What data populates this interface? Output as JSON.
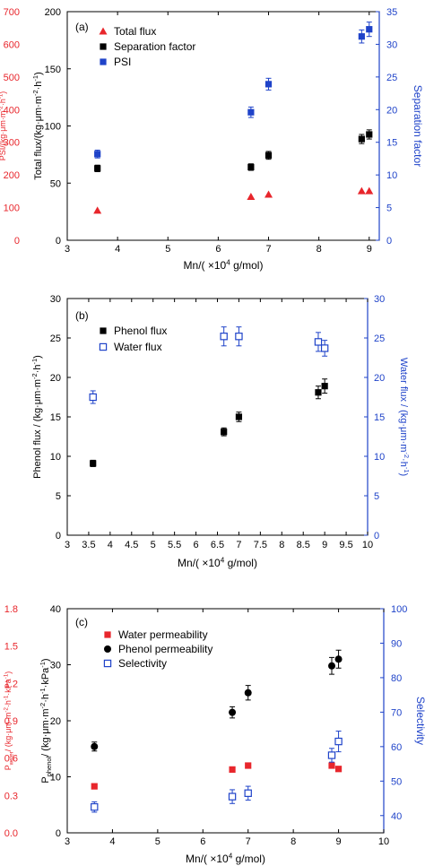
{
  "chart_data": [
    {
      "type": "scatter",
      "panel_label": "(a)",
      "xlabel_parts": [
        "Mn/( ×10",
        "4",
        " g/mol)"
      ],
      "x_ticks": [
        "3",
        "4",
        "5",
        "6",
        "7",
        "8",
        "9"
      ],
      "xlim": [
        3,
        9.2
      ],
      "left_outer_axis": {
        "label_parts": [
          "PSI/(kg·μm·m",
          "-2",
          "·h",
          "-1",
          ")"
        ],
        "ylim": [
          0,
          700
        ],
        "ticks": [
          "0",
          "100",
          "200",
          "300",
          "400",
          "500",
          "600",
          "700"
        ],
        "color": "#e8262c"
      },
      "left_inner_axis": {
        "label_parts": [
          "Total flux/(kg·μm·m",
          "-2",
          "·h",
          "-1",
          ")"
        ],
        "ylim": [
          0,
          200
        ],
        "ticks": [
          "0",
          "50",
          "100",
          "150",
          "200"
        ],
        "color": "#000000"
      },
      "right_axis": {
        "label": "Separation factor",
        "ylim": [
          0,
          35
        ],
        "ticks": [
          "0",
          "5",
          "10",
          "15",
          "20",
          "25",
          "30",
          "35"
        ],
        "color": "#1f43c9"
      },
      "series": [
        {
          "name": "Total flux",
          "marker": "triangle",
          "color": "#e8262c",
          "axis": "left_inner",
          "x": [
            3.6,
            6.65,
            7.0,
            8.85,
            9.0
          ],
          "y": [
            26,
            38,
            40,
            43,
            43
          ],
          "err": [
            0,
            0,
            0,
            0,
            0
          ]
        },
        {
          "name": "Separation factor",
          "marker": "square",
          "color": "#000000",
          "axis": "right",
          "x": [
            3.6,
            6.65,
            7.0,
            8.85,
            9.0
          ],
          "y": [
            11.0,
            11.2,
            13.0,
            15.5,
            16.2
          ],
          "err": [
            0.5,
            0.5,
            0.6,
            0.7,
            0.7
          ]
        },
        {
          "name": "PSI",
          "marker": "square",
          "color": "#1f43c9",
          "axis": "right",
          "x": [
            3.6,
            6.65,
            7.0,
            8.85,
            9.0
          ],
          "y": [
            13.2,
            19.6,
            23.9,
            31.2,
            32.3
          ],
          "err": [
            0.6,
            0.8,
            0.9,
            1.0,
            1.1
          ]
        }
      ],
      "legend_position": "top-left"
    },
    {
      "type": "scatter",
      "panel_label": "(b)",
      "xlabel_parts": [
        "Mn/( ×10",
        "4",
        " g/mol)"
      ],
      "x_ticks": [
        "3",
        "3.5",
        "4",
        "4.5",
        "5",
        "5.5",
        "6",
        "6.5",
        "7",
        "7.5",
        "8",
        "8.5",
        "9",
        "9.5",
        "10"
      ],
      "xlim": [
        3,
        10
      ],
      "left_axis": {
        "label_parts": [
          "Phenol flux / (kg·μm·m",
          "-2",
          "·h",
          "-1",
          ")"
        ],
        "ylim": [
          0,
          30
        ],
        "ticks": [
          "0",
          "5",
          "10",
          "15",
          "20",
          "25",
          "30"
        ],
        "color": "#000000"
      },
      "right_axis": {
        "label_parts": [
          "Water flux / (kg·μm·m",
          "-2",
          "·h",
          "-1",
          ")"
        ],
        "ylim": [
          0,
          30
        ],
        "ticks": [
          "0",
          "5",
          "10",
          "15",
          "20",
          "25",
          "30"
        ],
        "color": "#1f43c9"
      },
      "series": [
        {
          "name": "Phenol flux",
          "marker": "square",
          "color": "#000000",
          "axis": "left",
          "x": [
            3.6,
            6.65,
            7.0,
            8.85,
            9.0
          ],
          "y": [
            9.1,
            13.1,
            15.0,
            18.1,
            18.9
          ],
          "err": [
            0.4,
            0.5,
            0.6,
            0.8,
            0.9
          ]
        },
        {
          "name": "Water flux",
          "marker": "open-square",
          "color": "#1f43c9",
          "axis": "right",
          "x": [
            3.6,
            6.65,
            7.0,
            8.85,
            9.0
          ],
          "y": [
            17.5,
            25.2,
            25.2,
            24.5,
            23.7
          ],
          "err": [
            0.8,
            1.2,
            1.2,
            1.2,
            1.0
          ]
        }
      ],
      "legend_position": "top-left"
    },
    {
      "type": "scatter",
      "panel_label": "(c)",
      "xlabel_parts": [
        "Mn/( ×10",
        "4",
        " g/mol)"
      ],
      "x_ticks": [
        "3",
        "4",
        "5",
        "6",
        "7",
        "8",
        "9",
        "10"
      ],
      "xlim": [
        3,
        10
      ],
      "left_outer_axis": {
        "label_parts": [
          "P",
          "water",
          "/ (kg·μm·m",
          "-2",
          "·h",
          "-1",
          "·kPa",
          "-1",
          ")"
        ],
        "ylim": [
          0,
          1.8
        ],
        "ticks": [
          "0.0",
          "0.3",
          "0.6",
          "0.9",
          "1.2",
          "1.5",
          "1.8"
        ],
        "color": "#e8262c"
      },
      "left_inner_axis": {
        "label_parts": [
          "P",
          "phenol",
          "/ (kg·μm·m",
          "-2",
          "·h",
          "-1",
          "·kPa",
          "-1",
          ")"
        ],
        "ylim": [
          0,
          40
        ],
        "ticks": [
          "0",
          "10",
          "20",
          "30",
          "40"
        ],
        "color": "#000000"
      },
      "right_axis": {
        "label": "Selectivity",
        "ylim": [
          35,
          100
        ],
        "ticks": [
          "40",
          "50",
          "60",
          "70",
          "80",
          "90",
          "100"
        ],
        "color": "#1f43c9"
      },
      "series": [
        {
          "name": "Water permeability",
          "marker": "square",
          "color": "#e8262c",
          "axis": "left_inner",
          "x": [
            3.6,
            6.65,
            7.0,
            8.85,
            9.0
          ],
          "y": [
            8.3,
            11.3,
            12.0,
            12.0,
            11.4
          ],
          "err": [
            0.3,
            0.4,
            0.4,
            0.4,
            0.4
          ]
        },
        {
          "name": "Phenol permeability",
          "marker": "circle",
          "color": "#000000",
          "axis": "left_inner",
          "x": [
            3.6,
            6.65,
            7.0,
            8.85,
            9.0
          ],
          "y": [
            15.4,
            21.5,
            25.0,
            29.8,
            31.0
          ],
          "err": [
            0.8,
            1.0,
            1.3,
            1.5,
            1.6
          ]
        },
        {
          "name": "Selectivity",
          "marker": "open-square",
          "color": "#1f43c9",
          "axis": "right",
          "x": [
            3.6,
            6.65,
            7.0,
            8.85,
            9.0
          ],
          "y": [
            42.5,
            45.5,
            46.5,
            57.5,
            61.5
          ],
          "err": [
            1.5,
            2.0,
            2.0,
            2.0,
            3.0
          ]
        }
      ],
      "legend_position": "top-left"
    }
  ]
}
